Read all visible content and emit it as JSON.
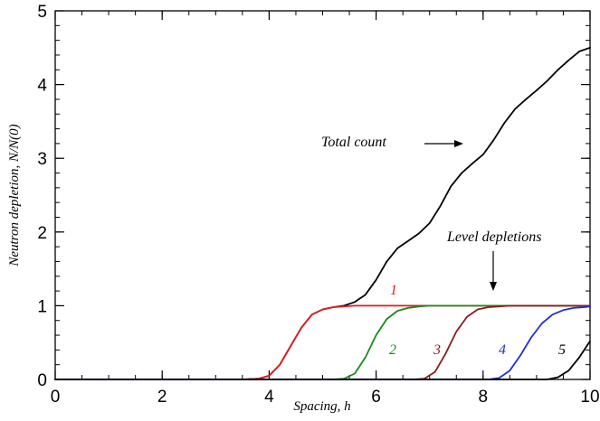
{
  "chart_data": {
    "type": "line",
    "title": "",
    "xlabel": "Spacing, h",
    "ylabel": "Neutron depletion, N/N(0)",
    "xlim": [
      0,
      10
    ],
    "ylim": [
      0,
      5
    ],
    "x_major_ticks": [
      0,
      2,
      4,
      6,
      8,
      10
    ],
    "x_tick_labels": [
      "0",
      "2",
      "4",
      "6",
      "8",
      "10"
    ],
    "y_major_ticks": [
      0,
      1,
      2,
      3,
      4,
      5
    ],
    "y_tick_labels": [
      "0",
      "1",
      "2",
      "3",
      "4",
      "5"
    ],
    "grid": false,
    "colors": {
      "total": "#000000",
      "1": "#e41a1c",
      "2": "#1a8a1a",
      "3": "#8b1a1a",
      "4": "#1f2fd8",
      "5": "#000000"
    },
    "series": [
      {
        "id": "total",
        "x": [
          0,
          3.5,
          3.8,
          4.0,
          4.2,
          4.4,
          4.6,
          4.8,
          5.0,
          5.2,
          5.4,
          5.6,
          5.8,
          6.0,
          6.2,
          6.4,
          6.6,
          6.8,
          7.0,
          7.2,
          7.4,
          7.6,
          7.8,
          8.0,
          8.2,
          8.4,
          8.6,
          8.8,
          9.0,
          9.2,
          9.4,
          9.6,
          9.8,
          10.0
        ],
        "y": [
          0,
          0,
          0.01,
          0.05,
          0.2,
          0.45,
          0.7,
          0.88,
          0.95,
          0.98,
          1.0,
          1.05,
          1.15,
          1.35,
          1.6,
          1.78,
          1.88,
          1.98,
          2.12,
          2.35,
          2.62,
          2.8,
          2.93,
          3.05,
          3.25,
          3.48,
          3.67,
          3.8,
          3.92,
          4.05,
          4.2,
          4.33,
          4.45,
          4.5
        ]
      },
      {
        "id": "level-1",
        "x": [
          0,
          3.5,
          3.8,
          4.0,
          4.2,
          4.4,
          4.6,
          4.8,
          5.0,
          5.2,
          5.4,
          5.6,
          5.8,
          6.0,
          7.0,
          8.0,
          9.0,
          10.0
        ],
        "y": [
          0,
          0,
          0.01,
          0.05,
          0.2,
          0.45,
          0.7,
          0.88,
          0.95,
          0.98,
          0.99,
          1.0,
          1.0,
          1.0,
          1.0,
          1.0,
          1.0,
          1.0
        ]
      },
      {
        "id": "level-2",
        "x": [
          0,
          5.2,
          5.4,
          5.6,
          5.8,
          6.0,
          6.2,
          6.4,
          6.6,
          6.8,
          7.0,
          7.2,
          8.0,
          9.0,
          10.0
        ],
        "y": [
          0,
          0,
          0.01,
          0.08,
          0.3,
          0.6,
          0.82,
          0.93,
          0.97,
          0.99,
          1.0,
          1.0,
          1.0,
          1.0,
          1.0
        ]
      },
      {
        "id": "level-3",
        "x": [
          0,
          6.7,
          6.9,
          7.1,
          7.3,
          7.5,
          7.7,
          7.9,
          8.1,
          8.3,
          8.5,
          9.0,
          10.0
        ],
        "y": [
          0,
          0,
          0.01,
          0.1,
          0.35,
          0.65,
          0.85,
          0.95,
          0.98,
          0.99,
          1.0,
          1.0,
          1.0
        ]
      },
      {
        "id": "level-4",
        "x": [
          0,
          8.1,
          8.3,
          8.5,
          8.7,
          8.9,
          9.1,
          9.3,
          9.5,
          9.7,
          9.9,
          10.0
        ],
        "y": [
          0,
          0,
          0.02,
          0.12,
          0.33,
          0.57,
          0.76,
          0.88,
          0.94,
          0.97,
          0.98,
          0.99
        ]
      },
      {
        "id": "level-5",
        "x": [
          0,
          9.2,
          9.4,
          9.6,
          9.8,
          10.0
        ],
        "y": [
          0,
          0,
          0.03,
          0.12,
          0.3,
          0.52
        ]
      }
    ],
    "annotations": [
      {
        "id": "total-count",
        "text": "Total count"
      },
      {
        "id": "level-depletions",
        "text": "Level depletions"
      }
    ],
    "curve_labels": [
      {
        "id": "1",
        "text": "1"
      },
      {
        "id": "2",
        "text": "2"
      },
      {
        "id": "3",
        "text": "3"
      },
      {
        "id": "4",
        "text": "4"
      },
      {
        "id": "5",
        "text": "5"
      }
    ]
  }
}
